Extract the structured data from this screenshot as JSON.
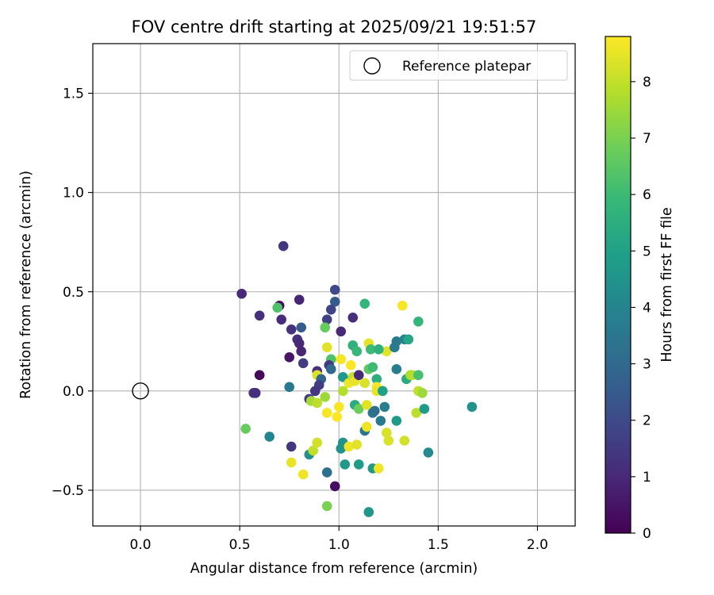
{
  "chart_data": {
    "type": "scatter",
    "title": "FOV centre drift starting at 2025/09/21 19:51:57",
    "xlabel": "Angular distance from reference (arcmin)",
    "ylabel": "Rotation from reference (arcmin)",
    "xlim": [
      -0.24,
      2.19
    ],
    "ylim": [
      -0.68,
      1.75
    ],
    "xticks": [
      0.0,
      0.5,
      1.0,
      1.5,
      2.0
    ],
    "xtick_labels": [
      "0.0",
      "0.5",
      "1.0",
      "1.5",
      "2.0"
    ],
    "yticks": [
      -0.5,
      0.0,
      0.5,
      1.0,
      1.5
    ],
    "ytick_labels": [
      "−0.5",
      "0.0",
      "0.5",
      "1.0",
      "1.5"
    ],
    "grid": true,
    "legend": {
      "label": "Reference platepar",
      "placement": "top-right"
    },
    "reference_point": {
      "x": 0.0,
      "y": 0.0
    },
    "colorbar": {
      "label": "Hours from first FF file",
      "min": 0,
      "max": 8.8,
      "ticks": [
        0,
        1,
        2,
        3,
        4,
        5,
        6,
        7,
        8
      ],
      "tick_labels": [
        "0",
        "1",
        "2",
        "3",
        "4",
        "5",
        "6",
        "7",
        "8"
      ],
      "colormap": "viridis"
    },
    "points": [
      {
        "x": 0.72,
        "y": 0.73,
        "c": 1.4
      },
      {
        "x": 0.51,
        "y": 0.49,
        "c": 1.0
      },
      {
        "x": 0.6,
        "y": 0.38,
        "c": 1.2
      },
      {
        "x": 0.7,
        "y": 0.43,
        "c": 0.3
      },
      {
        "x": 0.69,
        "y": 0.42,
        "c": 6.3
      },
      {
        "x": 0.71,
        "y": 0.36,
        "c": 1.1
      },
      {
        "x": 0.8,
        "y": 0.46,
        "c": 0.9
      },
      {
        "x": 0.76,
        "y": 0.31,
        "c": 1.3
      },
      {
        "x": 0.81,
        "y": 0.32,
        "c": 2.6
      },
      {
        "x": 0.79,
        "y": 0.26,
        "c": 1.2
      },
      {
        "x": 0.8,
        "y": 0.24,
        "c": 1.0
      },
      {
        "x": 0.81,
        "y": 0.2,
        "c": 0.9
      },
      {
        "x": 0.75,
        "y": 0.17,
        "c": 0.5
      },
      {
        "x": 0.82,
        "y": 0.14,
        "c": 1.6
      },
      {
        "x": 0.6,
        "y": 0.08,
        "c": 0.2
      },
      {
        "x": 0.75,
        "y": 0.02,
        "c": 3.6
      },
      {
        "x": 0.57,
        "y": -0.01,
        "c": 1.4
      },
      {
        "x": 0.58,
        "y": -0.01,
        "c": 1.2
      },
      {
        "x": 0.53,
        "y": -0.19,
        "c": 6.7
      },
      {
        "x": 0.65,
        "y": -0.23,
        "c": 4.0
      },
      {
        "x": 0.76,
        "y": -0.28,
        "c": 1.4
      },
      {
        "x": 0.76,
        "y": -0.36,
        "c": 8.5
      },
      {
        "x": 0.82,
        "y": -0.42,
        "c": 8.6
      },
      {
        "x": 0.85,
        "y": -0.32,
        "c": 4.4
      },
      {
        "x": 0.87,
        "y": -0.3,
        "c": 8.0
      },
      {
        "x": 0.89,
        "y": -0.26,
        "c": 8.2
      },
      {
        "x": 0.94,
        "y": -0.41,
        "c": 3.2
      },
      {
        "x": 0.94,
        "y": -0.58,
        "c": 7.0
      },
      {
        "x": 0.98,
        "y": -0.48,
        "c": 0.3
      },
      {
        "x": 0.98,
        "y": 0.51,
        "c": 2.0
      },
      {
        "x": 0.98,
        "y": 0.45,
        "c": 2.5
      },
      {
        "x": 0.96,
        "y": 0.41,
        "c": 1.8
      },
      {
        "x": 0.94,
        "y": 0.36,
        "c": 1.7
      },
      {
        "x": 0.93,
        "y": 0.32,
        "c": 6.7
      },
      {
        "x": 1.01,
        "y": 0.3,
        "c": 1.0
      },
      {
        "x": 1.07,
        "y": 0.37,
        "c": 1.2
      },
      {
        "x": 1.13,
        "y": 0.44,
        "c": 5.8
      },
      {
        "x": 1.32,
        "y": 0.43,
        "c": 8.7
      },
      {
        "x": 1.4,
        "y": 0.35,
        "c": 5.8
      },
      {
        "x": 0.94,
        "y": 0.22,
        "c": 8.4
      },
      {
        "x": 0.96,
        "y": 0.16,
        "c": 6.3
      },
      {
        "x": 0.95,
        "y": 0.13,
        "c": 1.5
      },
      {
        "x": 0.96,
        "y": 0.11,
        "c": 3.0
      },
      {
        "x": 0.89,
        "y": 0.1,
        "c": 1.2
      },
      {
        "x": 0.89,
        "y": 0.08,
        "c": 8.3
      },
      {
        "x": 0.91,
        "y": 0.06,
        "c": 2.8
      },
      {
        "x": 0.9,
        "y": 0.03,
        "c": 1.6
      },
      {
        "x": 0.88,
        "y": 0.0,
        "c": 1.4
      },
      {
        "x": 0.85,
        "y": -0.04,
        "c": 1.5
      },
      {
        "x": 0.86,
        "y": -0.05,
        "c": 7.6
      },
      {
        "x": 0.89,
        "y": -0.06,
        "c": 7.9
      },
      {
        "x": 0.93,
        "y": -0.03,
        "c": 7.5
      },
      {
        "x": 0.94,
        "y": -0.11,
        "c": 8.7
      },
      {
        "x": 0.99,
        "y": -0.13,
        "c": 8.8
      },
      {
        "x": 1.0,
        "y": -0.08,
        "c": 8.7
      },
      {
        "x": 1.01,
        "y": 0.16,
        "c": 8.7
      },
      {
        "x": 1.02,
        "y": 0.07,
        "c": 4.7
      },
      {
        "x": 1.02,
        "y": 0.0,
        "c": 7.8
      },
      {
        "x": 1.05,
        "y": 0.04,
        "c": 8.6
      },
      {
        "x": 1.06,
        "y": 0.13,
        "c": 8.8
      },
      {
        "x": 1.07,
        "y": 0.23,
        "c": 5.6
      },
      {
        "x": 1.09,
        "y": 0.2,
        "c": 5.9
      },
      {
        "x": 1.07,
        "y": 0.07,
        "c": 8.0
      },
      {
        "x": 1.08,
        "y": 0.05,
        "c": 8.5
      },
      {
        "x": 1.1,
        "y": 0.08,
        "c": 1.0
      },
      {
        "x": 1.08,
        "y": -0.07,
        "c": 5.4
      },
      {
        "x": 1.1,
        "y": -0.09,
        "c": 6.8
      },
      {
        "x": 1.14,
        "y": -0.07,
        "c": 8.4
      },
      {
        "x": 1.13,
        "y": -0.2,
        "c": 3.5
      },
      {
        "x": 1.14,
        "y": -0.18,
        "c": 8.6
      },
      {
        "x": 1.02,
        "y": -0.26,
        "c": 4.4
      },
      {
        "x": 1.01,
        "y": -0.29,
        "c": 4.5
      },
      {
        "x": 1.05,
        "y": -0.28,
        "c": 8.6
      },
      {
        "x": 1.09,
        "y": -0.27,
        "c": 8.4
      },
      {
        "x": 1.03,
        "y": -0.37,
        "c": 4.7
      },
      {
        "x": 1.1,
        "y": -0.37,
        "c": 4.8
      },
      {
        "x": 1.17,
        "y": -0.39,
        "c": 4.8
      },
      {
        "x": 1.2,
        "y": -0.39,
        "c": 8.6
      },
      {
        "x": 1.15,
        "y": -0.61,
        "c": 4.6
      },
      {
        "x": 1.13,
        "y": 0.04,
        "c": 8.3
      },
      {
        "x": 1.15,
        "y": 0.24,
        "c": 8.5
      },
      {
        "x": 1.16,
        "y": 0.21,
        "c": 6.0
      },
      {
        "x": 1.15,
        "y": 0.11,
        "c": 6.6
      },
      {
        "x": 1.17,
        "y": 0.12,
        "c": 6.0
      },
      {
        "x": 1.19,
        "y": 0.06,
        "c": 5.5
      },
      {
        "x": 1.19,
        "y": 0.02,
        "c": 8.8
      },
      {
        "x": 1.19,
        "y": 0.0,
        "c": 8.5
      },
      {
        "x": 1.17,
        "y": -0.11,
        "c": 3.5
      },
      {
        "x": 1.18,
        "y": -0.1,
        "c": 3.2
      },
      {
        "x": 1.21,
        "y": -0.15,
        "c": 3.6
      },
      {
        "x": 1.23,
        "y": -0.08,
        "c": 3.8
      },
      {
        "x": 1.22,
        "y": 0.0,
        "c": 5.0
      },
      {
        "x": 1.24,
        "y": 0.2,
        "c": 8.4
      },
      {
        "x": 1.24,
        "y": -0.21,
        "c": 8.3
      },
      {
        "x": 1.25,
        "y": -0.25,
        "c": 8.3
      },
      {
        "x": 1.2,
        "y": 0.21,
        "c": 5.6
      },
      {
        "x": 1.28,
        "y": 0.22,
        "c": 3.6
      },
      {
        "x": 1.29,
        "y": 0.25,
        "c": 3.6
      },
      {
        "x": 1.29,
        "y": 0.11,
        "c": 3.8
      },
      {
        "x": 1.29,
        "y": -0.15,
        "c": 4.8
      },
      {
        "x": 1.33,
        "y": -0.25,
        "c": 8.2
      },
      {
        "x": 1.33,
        "y": 0.26,
        "c": 4.0
      },
      {
        "x": 1.35,
        "y": 0.26,
        "c": 5.2
      },
      {
        "x": 1.34,
        "y": 0.06,
        "c": 5.4
      },
      {
        "x": 1.36,
        "y": 0.08,
        "c": 7.6
      },
      {
        "x": 1.37,
        "y": 0.08,
        "c": 7.8
      },
      {
        "x": 1.4,
        "y": 0.08,
        "c": 6.2
      },
      {
        "x": 1.4,
        "y": 0.0,
        "c": 8.0
      },
      {
        "x": 1.42,
        "y": -0.01,
        "c": 7.5
      },
      {
        "x": 1.39,
        "y": -0.11,
        "c": 7.9
      },
      {
        "x": 1.43,
        "y": -0.09,
        "c": 4.8
      },
      {
        "x": 1.45,
        "y": -0.31,
        "c": 4.2
      },
      {
        "x": 1.67,
        "y": -0.08,
        "c": 4.5
      }
    ]
  }
}
